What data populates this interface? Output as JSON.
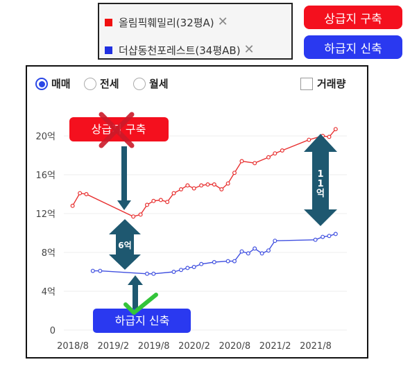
{
  "legend": {
    "items": [
      {
        "label": "올림픽훼밀리(32평A)",
        "color": "#f01010",
        "remove_icon": "close-icon"
      },
      {
        "label": "더샵동천포레스트(34평AB)",
        "color": "#2030e0",
        "remove_icon": "close-icon"
      }
    ],
    "remove_glyph": "✕"
  },
  "buttons": {
    "upper_new": "상급지 구축",
    "lower_new": "하급지 신축"
  },
  "options": {
    "deal_types": [
      "매매",
      "전세",
      "월세"
    ],
    "selected": "매매",
    "volume_checkbox": "거래량"
  },
  "annotations": {
    "callout_upper": "상급지 구축",
    "callout_lower": "하급지 신축",
    "gap_6": "6억",
    "gap_11": "11억",
    "gap_11_chars": [
      "1",
      "1",
      "억"
    ]
  },
  "colors": {
    "red": "#f4101e",
    "blue": "#2a39f0",
    "arrow": "#1e5870",
    "cross": "#cc1a2a",
    "check": "#33c43a"
  },
  "chart_data": {
    "type": "line",
    "y_ticks": [
      "0",
      "4억",
      "8억",
      "12억",
      "16억",
      "20억"
    ],
    "y_tick_values": [
      0,
      4,
      8,
      12,
      16,
      20
    ],
    "x_ticks": [
      "2018/8",
      "2019/2",
      "2019/8",
      "2020/2",
      "2020/8",
      "2021/2",
      "2021/8"
    ],
    "x_tick_values": [
      2018.583,
      2019.083,
      2019.583,
      2020.083,
      2020.583,
      2021.083,
      2021.583
    ],
    "xlim": [
      2018.583,
      2021.917
    ],
    "ylim": [
      0,
      20
    ],
    "grid": true,
    "series": [
      {
        "name": "올림픽훼밀리(32평A)",
        "color": "#e83030",
        "x": [
          2018.58,
          2018.67,
          2018.75,
          2019.33,
          2019.42,
          2019.5,
          2019.58,
          2019.67,
          2019.75,
          2019.83,
          2019.92,
          2020.0,
          2020.08,
          2020.17,
          2020.25,
          2020.33,
          2020.42,
          2020.5,
          2020.58,
          2020.67,
          2020.83,
          2021.0,
          2021.08,
          2021.17,
          2021.5,
          2021.67,
          2021.75,
          2021.83
        ],
        "y": [
          12.8,
          14.1,
          14.0,
          11.7,
          11.9,
          12.9,
          13.3,
          13.4,
          13.2,
          14.1,
          14.5,
          14.9,
          14.6,
          14.9,
          15.0,
          15.0,
          14.5,
          15.1,
          16.2,
          17.4,
          17.2,
          17.8,
          18.2,
          18.5,
          19.6,
          20.0,
          19.9,
          20.7
        ]
      },
      {
        "name": "더샵동천포레스트(34평AB)",
        "color": "#4050e0",
        "x": [
          2018.83,
          2018.92,
          2019.5,
          2019.58,
          2019.83,
          2019.92,
          2020.0,
          2020.08,
          2020.17,
          2020.33,
          2020.5,
          2020.58,
          2020.67,
          2020.75,
          2020.83,
          2020.92,
          2021.0,
          2021.08,
          2021.58,
          2021.67,
          2021.75,
          2021.83
        ],
        "y": [
          6.1,
          6.1,
          5.8,
          5.8,
          6.0,
          6.2,
          6.4,
          6.5,
          6.8,
          7.0,
          7.1,
          7.1,
          8.1,
          7.9,
          8.4,
          7.9,
          8.2,
          9.2,
          9.3,
          9.6,
          9.7,
          9.9
        ]
      }
    ]
  }
}
